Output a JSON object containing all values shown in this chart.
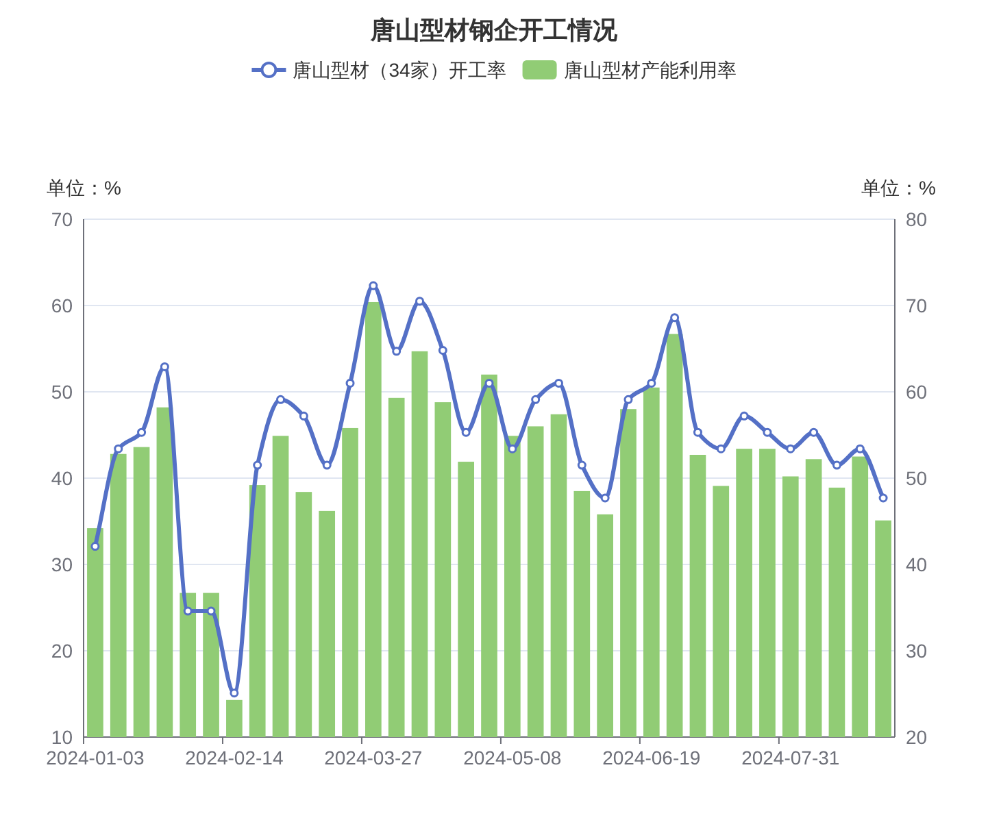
{
  "chart_data": {
    "type": "bar",
    "title": "唐山型材钢企开工情况",
    "ylabel": "单位：%",
    "y2label": "单位：%",
    "categories": [
      "2024-01-03",
      null,
      null,
      null,
      null,
      null,
      "2024-02-14",
      null,
      null,
      null,
      null,
      null,
      "2024-03-27",
      null,
      null,
      null,
      null,
      null,
      "2024-05-08",
      null,
      null,
      null,
      null,
      null,
      "2024-06-19",
      null,
      null,
      null,
      null,
      null,
      "2024-07-31",
      null,
      null,
      null,
      null
    ],
    "series": [
      {
        "name": "唐山型材（34家）开工率",
        "type": "line",
        "axis": "y2",
        "marker": "circle",
        "color": "#5470c6",
        "values": [
          42.1,
          53.4,
          55.3,
          62.9,
          34.6,
          34.6,
          25.1,
          51.5,
          59.1,
          57.2,
          51.5,
          61.0,
          72.3,
          64.7,
          70.5,
          64.8,
          55.3,
          61.0,
          53.4,
          59.1,
          61.0,
          51.5,
          47.7,
          59.1,
          61.0,
          68.6,
          55.3,
          53.4,
          57.2,
          55.3,
          53.4,
          55.3,
          51.5,
          53.4,
          47.7
        ]
      },
      {
        "name": "唐山型材产能利用率",
        "color": "#91cc75",
        "values": [
          34.2,
          42.8,
          43.6,
          48.2,
          26.7,
          26.7,
          14.3,
          39.2,
          44.9,
          38.4,
          36.2,
          45.8,
          60.4,
          49.3,
          54.7,
          48.8,
          41.9,
          52.0,
          44.9,
          46.0,
          47.4,
          38.5,
          35.8,
          48.0,
          50.5,
          56.7,
          42.7,
          39.1,
          43.4,
          43.4,
          40.2,
          42.2,
          38.9,
          42.5,
          35.1
        ]
      }
    ],
    "ylim": [
      10,
      70
    ],
    "yticks": [
      10,
      20,
      30,
      40,
      50,
      60,
      70
    ],
    "y2lim": [
      20,
      80
    ],
    "y2ticks": [
      20,
      30,
      40,
      50,
      60,
      70,
      80
    ],
    "grid": "y",
    "legend": "top"
  }
}
